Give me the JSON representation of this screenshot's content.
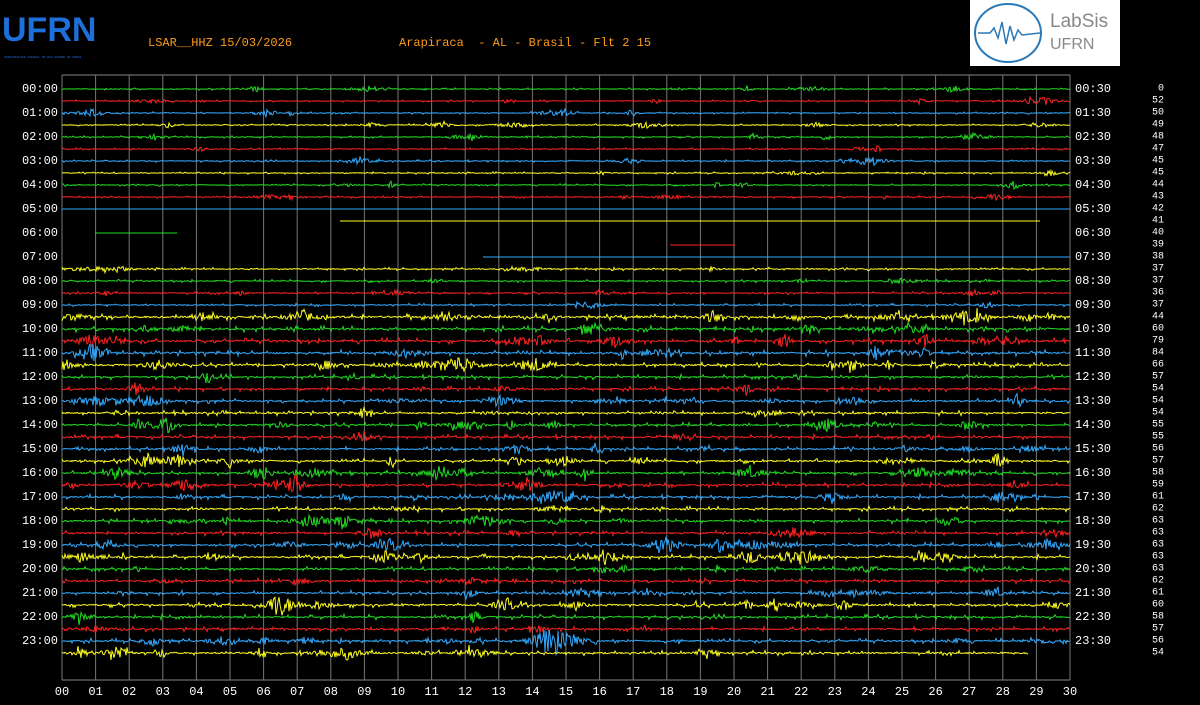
{
  "header": {
    "logo_left": "UFRN",
    "logo_left_caption": "UNIVERSIDADE FEDERAL DO RIO GRANDE DO NORTE",
    "station": "LSAR__HHZ 15/03/2026",
    "location": "Arapiraca  - AL - Brasil - Flt 2 15",
    "logo_right_title": "LabSis",
    "logo_right_subtitle": "UFRN"
  },
  "left_labels": [
    "00:00",
    "01:00",
    "02:00",
    "03:00",
    "04:00",
    "05:00",
    "06:00",
    "07:00",
    "08:00",
    "09:00",
    "10:00",
    "11:00",
    "12:00",
    "13:00",
    "14:00",
    "15:00",
    "16:00",
    "17:00",
    "18:00",
    "19:00",
    "20:00",
    "21:00",
    "22:00",
    "23:00"
  ],
  "right_labels": [
    "00:30",
    "01:30",
    "02:30",
    "03:30",
    "04:30",
    "05:30",
    "06:30",
    "07:30",
    "08:30",
    "09:30",
    "10:30",
    "11:30",
    "12:30",
    "13:30",
    "14:30",
    "15:30",
    "16:30",
    "17:30",
    "18:30",
    "19:30",
    "20:30",
    "21:30",
    "22:30",
    "23:30"
  ],
  "row_values": [
    0,
    52,
    50,
    49,
    48,
    47,
    45,
    45,
    44,
    43,
    42,
    41,
    40,
    39,
    38,
    37,
    37,
    36,
    37,
    44,
    60,
    79,
    84,
    66,
    57,
    54,
    54,
    54,
    55,
    55,
    56,
    57,
    58,
    59,
    61,
    62,
    63,
    63,
    63,
    63,
    63,
    62,
    61,
    60,
    58,
    57,
    56,
    54
  ],
  "x_labels": [
    "00",
    "01",
    "02",
    "03",
    "04",
    "05",
    "06",
    "07",
    "08",
    "09",
    "10",
    "11",
    "12",
    "13",
    "14",
    "15",
    "16",
    "17",
    "18",
    "19",
    "20",
    "21",
    "22",
    "23",
    "24",
    "25",
    "26",
    "27",
    "28",
    "29",
    "30"
  ]
}
